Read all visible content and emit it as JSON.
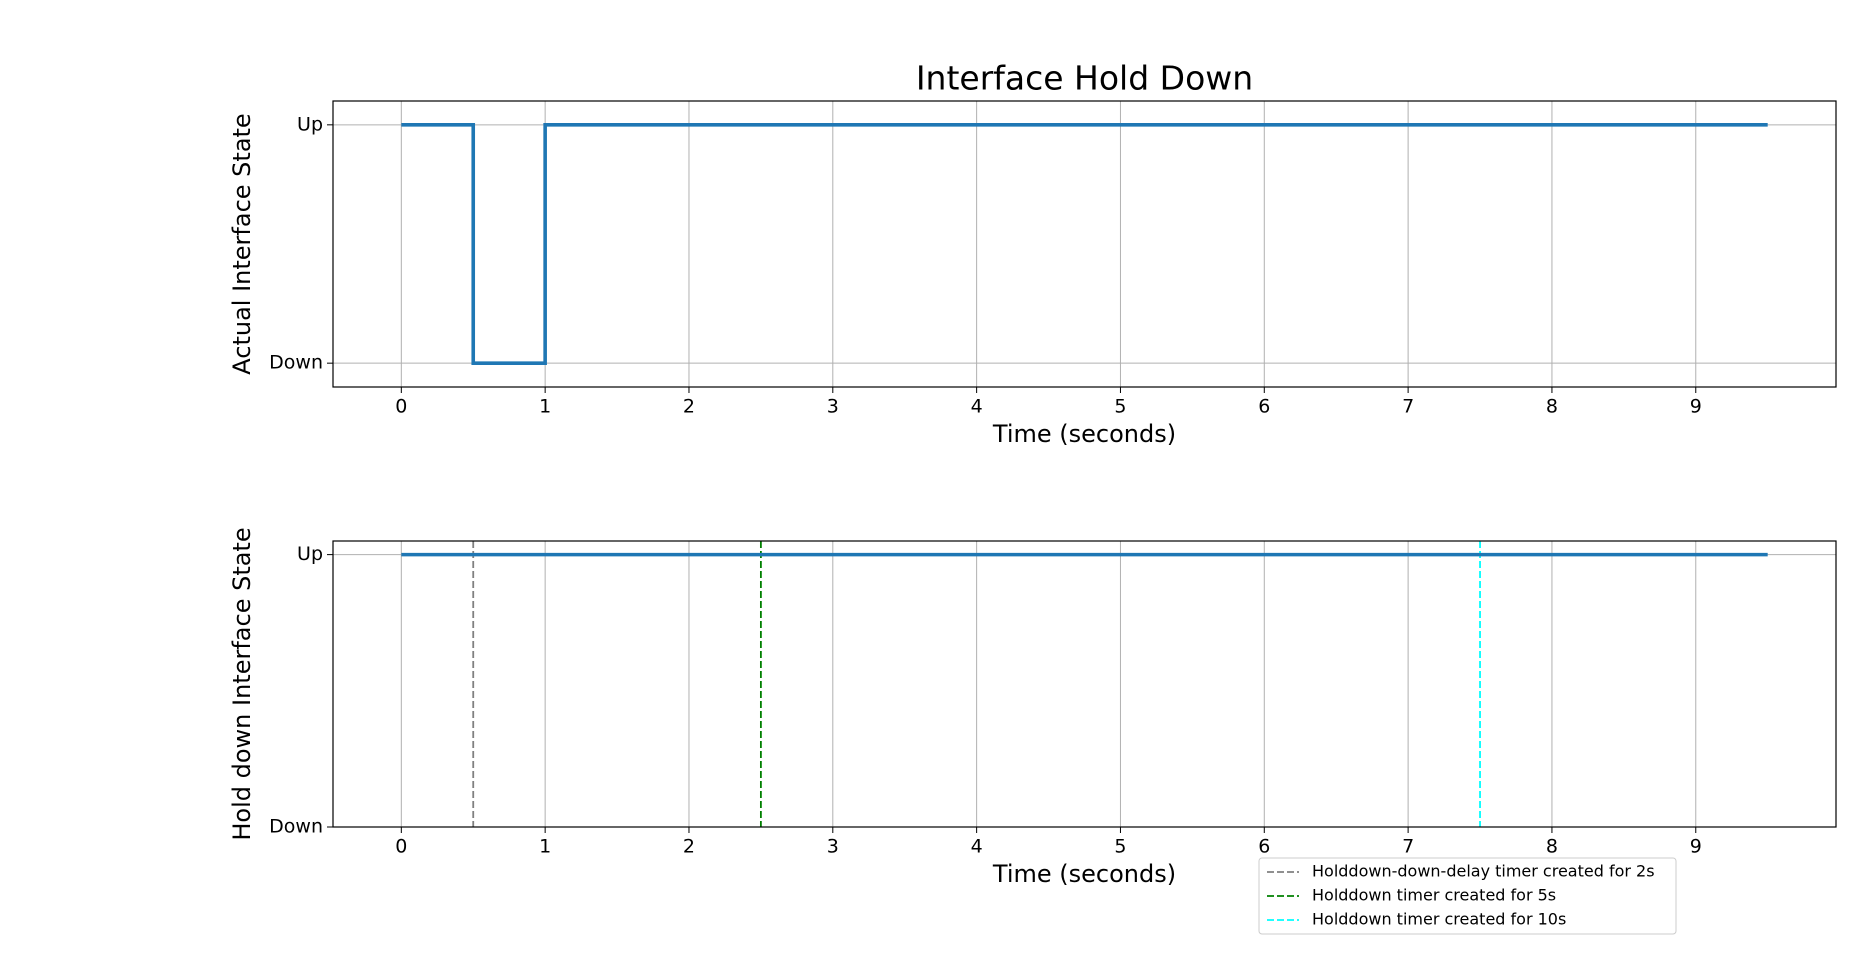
{
  "chart_data": [
    {
      "type": "line",
      "title": "Interface Hold Down",
      "xlabel": "Time (seconds)",
      "ylabel": "Actual Interface State",
      "x": [
        0,
        0.5,
        0.5,
        1,
        1,
        9.5
      ],
      "series": [
        {
          "color": "#1f77b4",
          "values": [
            1,
            1,
            0,
            0,
            1,
            1
          ]
        }
      ],
      "xlim": [
        -0.475,
        9.975
      ],
      "ylim": [
        -0.1,
        1.1
      ],
      "xticks": [
        0,
        1,
        2,
        3,
        4,
        5,
        6,
        7,
        8,
        9
      ],
      "yticks": [
        {
          "value": 0,
          "label": "Down"
        },
        {
          "value": 1,
          "label": "Up"
        }
      ],
      "grid": true
    },
    {
      "type": "line",
      "xlabel": "Time (seconds)",
      "ylabel": "Hold down Interface State",
      "x": [
        0,
        9.5
      ],
      "series": [
        {
          "color": "#1f77b4",
          "values": [
            1,
            1
          ]
        }
      ],
      "vlines": [
        {
          "x": 0.5,
          "color": "#808080",
          "label": "Holddown-down-delay timer created for 2s"
        },
        {
          "x": 2.5,
          "color": "#008000",
          "label": "Holddown timer created for 5s"
        },
        {
          "x": 7.5,
          "color": "#00ffff",
          "label": "Holddown timer created for 10s"
        }
      ],
      "xlim": [
        -0.475,
        9.975
      ],
      "ylim": [
        0,
        1.05
      ],
      "xticks": [
        0,
        1,
        2,
        3,
        4,
        5,
        6,
        7,
        8,
        9
      ],
      "yticks": [
        {
          "value": 0,
          "label": "Down"
        },
        {
          "value": 1,
          "label": "Up"
        }
      ],
      "grid": true
    }
  ]
}
